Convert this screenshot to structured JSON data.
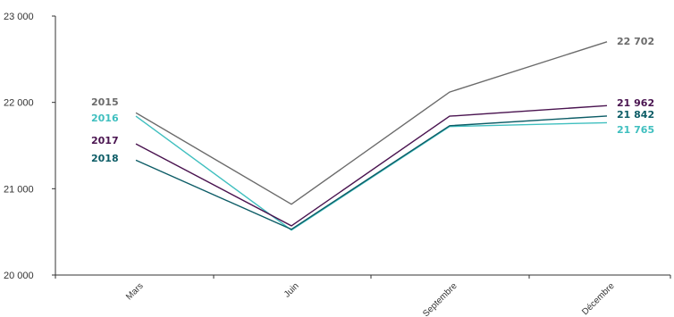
{
  "chart_data": {
    "type": "line",
    "title": "",
    "xlabel": "",
    "ylabel": "",
    "categories": [
      "Mars",
      "Juin",
      "Septembre",
      "Décembre"
    ],
    "ylim": [
      20000,
      23000
    ],
    "yticks": [
      20000,
      21000,
      22000,
      23000
    ],
    "ytick_labels": [
      "20 000",
      "21 000",
      "22 000",
      "23 000"
    ],
    "grid": false,
    "series": [
      {
        "name": "2015",
        "color": "#6b6b6b",
        "values": [
          21880,
          20820,
          22120,
          22702
        ],
        "end_label": "22 702"
      },
      {
        "name": "2016",
        "color": "#3fbfbf",
        "values": [
          21840,
          20520,
          21720,
          21765
        ],
        "end_label": "21 765"
      },
      {
        "name": "2017",
        "color": "#4a1450",
        "values": [
          21520,
          20570,
          21840,
          21962
        ],
        "end_label": "21 962"
      },
      {
        "name": "2018",
        "color": "#0c5c66",
        "values": [
          21330,
          20530,
          21730,
          21842
        ],
        "end_label": "21 842"
      }
    ]
  }
}
